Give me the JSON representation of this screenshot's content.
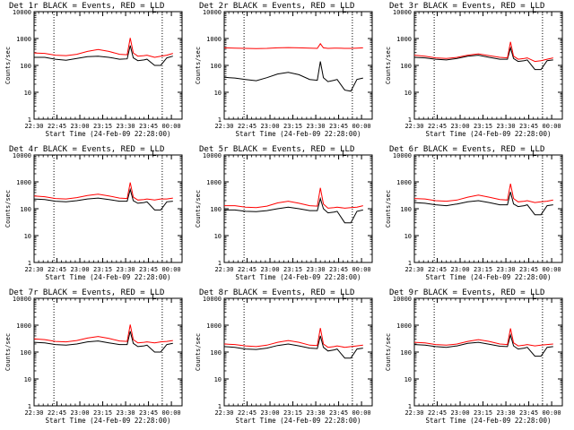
{
  "figure": {
    "ylabel": "Counts/sec",
    "xlabel": "Start Time (24-Feb-09 22:28:00)",
    "y_ticks": [
      "1",
      "10",
      "100",
      "1000",
      "10000"
    ],
    "x_ticks": [
      "22:30",
      "22:45",
      "23:00",
      "23:15",
      "23:30",
      "23:45",
      "00:00"
    ],
    "ylim": [
      1,
      10000
    ],
    "y_scale": "log",
    "x_range_minutes_from_2230": [
      0,
      97
    ],
    "vlines_minutes_from_2230": [
      13,
      84
    ],
    "colors": {
      "events": "#000000",
      "lld": "#ff0000"
    },
    "legend_mark": "L"
  },
  "chart_data": [
    {
      "type": "line",
      "title": "Det 1r BLACK = Events, RED = LLD",
      "x": [
        "22:30",
        "22:37",
        "22:44",
        "22:51",
        "22:58",
        "23:05",
        "23:12",
        "23:19",
        "23:26",
        "23:31",
        "23:33",
        "23:35",
        "23:38",
        "23:42",
        "23:44",
        "23:49",
        "23:53",
        "23:57",
        "00:01"
      ],
      "series": [
        {
          "name": "Events",
          "values": [
            200,
            200,
            170,
            155,
            180,
            210,
            220,
            200,
            170,
            175,
            550,
            190,
            150,
            160,
            170,
            100,
            100,
            190,
            220
          ]
        },
        {
          "name": "LLD",
          "values": [
            290,
            280,
            240,
            230,
            260,
            330,
            390,
            330,
            260,
            250,
            1050,
            290,
            220,
            230,
            240,
            200,
            220,
            240,
            280
          ]
        }
      ]
    },
    {
      "type": "line",
      "title": "Det 2r BLACK = Events, RED = LLD",
      "x": [
        "22:30",
        "22:37",
        "22:44",
        "22:51",
        "22:58",
        "23:05",
        "23:12",
        "23:19",
        "23:26",
        "23:31",
        "23:33",
        "23:35",
        "23:38",
        "23:42",
        "23:44",
        "23:49",
        "23:53",
        "23:57",
        "00:01"
      ],
      "series": [
        {
          "name": "Events",
          "values": [
            36,
            34,
            30,
            27,
            35,
            48,
            55,
            45,
            30,
            28,
            140,
            35,
            25,
            28,
            30,
            12,
            11,
            30,
            34
          ]
        },
        {
          "name": "LLD",
          "values": [
            450,
            440,
            430,
            420,
            430,
            450,
            460,
            450,
            440,
            430,
            640,
            450,
            430,
            440,
            440,
            430,
            430,
            440,
            450
          ]
        }
      ]
    },
    {
      "type": "line",
      "title": "Det 3r BLACK = Events, RED = LLD",
      "x": [
        "22:30",
        "22:37",
        "22:44",
        "22:51",
        "22:58",
        "23:05",
        "23:12",
        "23:19",
        "23:26",
        "23:31",
        "23:33",
        "23:35",
        "23:38",
        "23:42",
        "23:44",
        "23:49",
        "23:53",
        "23:57",
        "00:01"
      ],
      "series": [
        {
          "name": "Events",
          "values": [
            200,
            190,
            170,
            160,
            180,
            220,
            240,
            200,
            170,
            170,
            450,
            180,
            140,
            150,
            160,
            70,
            70,
            150,
            160
          ]
        },
        {
          "name": "LLD",
          "values": [
            240,
            220,
            190,
            180,
            200,
            240,
            270,
            230,
            200,
            190,
            750,
            220,
            170,
            180,
            190,
            140,
            150,
            170,
            190
          ]
        }
      ]
    },
    {
      "type": "line",
      "title": "Det 4r BLACK = Events, RED = LLD",
      "x": [
        "22:30",
        "22:37",
        "22:44",
        "22:51",
        "22:58",
        "23:05",
        "23:12",
        "23:19",
        "23:26",
        "23:31",
        "23:33",
        "23:35",
        "23:38",
        "23:42",
        "23:44",
        "23:49",
        "23:53",
        "23:57",
        "00:01"
      ],
      "series": [
        {
          "name": "Events",
          "values": [
            230,
            220,
            190,
            180,
            200,
            230,
            250,
            220,
            190,
            190,
            520,
            200,
            160,
            170,
            180,
            90,
            90,
            180,
            190
          ]
        },
        {
          "name": "LLD",
          "values": [
            300,
            280,
            240,
            230,
            260,
            310,
            350,
            300,
            250,
            240,
            950,
            270,
            210,
            220,
            230,
            210,
            230,
            230,
            250
          ]
        }
      ]
    },
    {
      "type": "line",
      "title": "Det 5r BLACK = Events, RED = LLD",
      "x": [
        "22:30",
        "22:37",
        "22:44",
        "22:51",
        "22:58",
        "23:05",
        "23:12",
        "23:19",
        "23:26",
        "23:31",
        "23:33",
        "23:35",
        "23:38",
        "23:42",
        "23:44",
        "23:49",
        "23:53",
        "23:57",
        "00:01"
      ],
      "series": [
        {
          "name": "Events",
          "values": [
            90,
            90,
            80,
            78,
            85,
            100,
            115,
            100,
            85,
            85,
            240,
            100,
            70,
            75,
            80,
            30,
            30,
            80,
            90
          ]
        },
        {
          "name": "LLD",
          "values": [
            130,
            130,
            115,
            110,
            125,
            165,
            190,
            160,
            130,
            125,
            600,
            150,
            105,
            110,
            115,
            105,
            110,
            115,
            130
          ]
        }
      ]
    },
    {
      "type": "line",
      "title": "Det 6r BLACK = Events, RED = LLD",
      "x": [
        "22:30",
        "22:37",
        "22:44",
        "22:51",
        "22:58",
        "23:05",
        "23:12",
        "23:19",
        "23:26",
        "23:31",
        "23:33",
        "23:35",
        "23:38",
        "23:42",
        "23:44",
        "23:49",
        "23:53",
        "23:57",
        "00:01"
      ],
      "series": [
        {
          "name": "Events",
          "values": [
            170,
            160,
            140,
            130,
            150,
            180,
            200,
            170,
            140,
            140,
            420,
            150,
            120,
            130,
            140,
            60,
            60,
            130,
            140
          ]
        },
        {
          "name": "LLD",
          "values": [
            240,
            230,
            200,
            190,
            210,
            270,
            320,
            270,
            220,
            210,
            850,
            240,
            180,
            190,
            200,
            170,
            180,
            190,
            210
          ]
        }
      ]
    },
    {
      "type": "line",
      "title": "Det 7r BLACK = Events, RED = LLD",
      "x": [
        "22:30",
        "22:37",
        "22:44",
        "22:51",
        "22:58",
        "23:05",
        "23:12",
        "23:19",
        "23:26",
        "23:31",
        "23:33",
        "23:35",
        "23:38",
        "23:42",
        "23:44",
        "23:49",
        "23:53",
        "23:57",
        "00:01"
      ],
      "series": [
        {
          "name": "Events",
          "values": [
            230,
            220,
            190,
            180,
            200,
            240,
            260,
            220,
            190,
            190,
            600,
            210,
            160,
            170,
            180,
            100,
            100,
            190,
            210
          ]
        },
        {
          "name": "LLD",
          "values": [
            310,
            290,
            250,
            240,
            270,
            330,
            380,
            320,
            260,
            250,
            1050,
            290,
            220,
            230,
            240,
            220,
            240,
            250,
            270
          ]
        }
      ]
    },
    {
      "type": "line",
      "title": "Det 8r BLACK = Events, RED = LLD",
      "x": [
        "22:30",
        "22:37",
        "22:44",
        "22:51",
        "22:58",
        "23:05",
        "23:12",
        "23:19",
        "23:26",
        "23:31",
        "23:33",
        "23:35",
        "23:38",
        "23:42",
        "23:44",
        "23:49",
        "23:53",
        "23:57",
        "00:01"
      ],
      "series": [
        {
          "name": "Events",
          "values": [
            160,
            150,
            130,
            125,
            140,
            175,
            200,
            170,
            140,
            135,
            400,
            150,
            110,
            120,
            130,
            60,
            60,
            130,
            140
          ]
        },
        {
          "name": "LLD",
          "values": [
            200,
            190,
            170,
            160,
            180,
            230,
            270,
            230,
            180,
            175,
            780,
            200,
            150,
            160,
            170,
            150,
            160,
            170,
            180
          ]
        }
      ]
    },
    {
      "type": "line",
      "title": "Det 9r BLACK = Events, RED = LLD",
      "x": [
        "22:30",
        "22:37",
        "22:44",
        "22:51",
        "22:58",
        "23:05",
        "23:12",
        "23:19",
        "23:26",
        "23:31",
        "23:33",
        "23:35",
        "23:38",
        "23:42",
        "23:44",
        "23:49",
        "23:53",
        "23:57",
        "00:01"
      ],
      "series": [
        {
          "name": "Events",
          "values": [
            190,
            180,
            160,
            150,
            170,
            210,
            230,
            195,
            165,
            160,
            430,
            170,
            130,
            140,
            150,
            70,
            70,
            150,
            160
          ]
        },
        {
          "name": "LLD",
          "values": [
            230,
            220,
            190,
            180,
            200,
            250,
            290,
            250,
            200,
            190,
            760,
            220,
            170,
            180,
            190,
            170,
            180,
            190,
            200
          ]
        }
      ]
    }
  ]
}
